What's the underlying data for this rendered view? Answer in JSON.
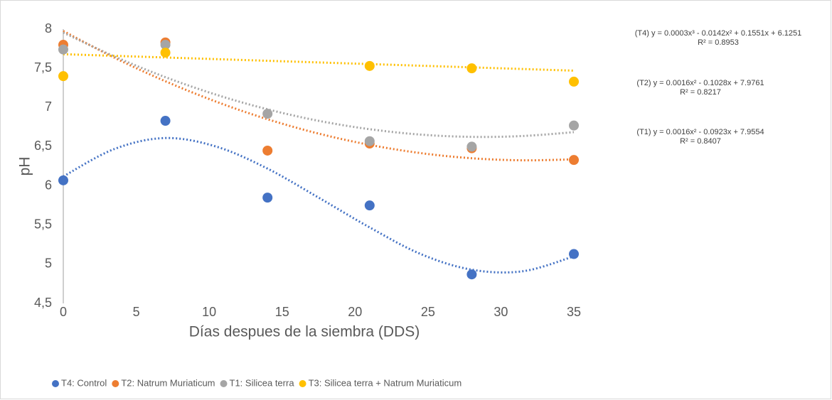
{
  "chart_data": {
    "type": "scatter",
    "xlabel": "Días despues de la siembra (DDS)",
    "ylabel": "pH",
    "x": [
      0,
      7,
      14,
      21,
      28,
      35
    ],
    "xlim": [
      0,
      35
    ],
    "xticks": [
      0,
      5,
      10,
      15,
      20,
      25,
      30,
      35
    ],
    "ylim": [
      4.5,
      8
    ],
    "yticks": [
      {
        "value": 4.5,
        "label": "4,5"
      },
      5,
      {
        "value": 5.5,
        "label": "5,5"
      },
      6,
      {
        "value": 6.5,
        "label": "6,5"
      },
      7,
      {
        "value": 7.5,
        "label": "7,5"
      },
      8
    ],
    "grid": false,
    "legend": "bottom",
    "trend_x": [
      0,
      3.5,
      7,
      10.5,
      14,
      17.5,
      21,
      24.5,
      28,
      31.5,
      35
    ],
    "series": [
      {
        "name": "T4: Control",
        "color": "#4472c4",
        "values": [
          6.07,
          6.83,
          5.85,
          5.75,
          4.87,
          5.13
        ],
        "trend": [
          6.12,
          6.47,
          6.61,
          6.5,
          6.22,
          5.85,
          5.47,
          5.13,
          4.93,
          4.91,
          5.1
        ]
      },
      {
        "name": "T2: Natrum Muriaticum",
        "color": "#ed7d31",
        "values": [
          7.8,
          7.83,
          6.45,
          6.54,
          6.48,
          6.33
        ],
        "trend": [
          7.976,
          7.636,
          7.335,
          7.073,
          6.85,
          6.667,
          6.523,
          6.418,
          6.352,
          6.326,
          6.338
        ]
      },
      {
        "name": "T1: Silicea terra",
        "color": "#a5a5a5",
        "values": [
          7.74,
          7.8,
          6.92,
          6.57,
          6.5,
          6.77
        ],
        "trend": [
          7.955,
          7.652,
          7.387,
          7.162,
          6.977,
          6.83,
          6.723,
          6.654,
          6.625,
          6.636,
          6.685
        ]
      },
      {
        "name": "T3: Silicea terra + Natrum Muriaticum",
        "color": "#ffc000",
        "values": [
          7.4,
          7.7,
          null,
          7.53,
          7.5,
          7.33
        ],
        "trend": [
          7.68,
          7.659,
          7.638,
          7.617,
          7.596,
          7.575,
          7.554,
          7.533,
          7.512,
          7.491,
          7.47
        ]
      }
    ],
    "annotations": [
      {
        "equation": "(T4) y = 0.0003x³ - 0.0142x² + 0.1551x + 6.1251",
        "r2": "R² = 0.8953"
      },
      {
        "equation": "(T2) y = 0.0016x² - 0.1028x + 7.9761",
        "r2": "R² = 0.8217"
      },
      {
        "equation": "(T1) y = 0.0016x² - 0.0923x + 7.9554",
        "r2": "R² = 0.8407"
      }
    ]
  }
}
